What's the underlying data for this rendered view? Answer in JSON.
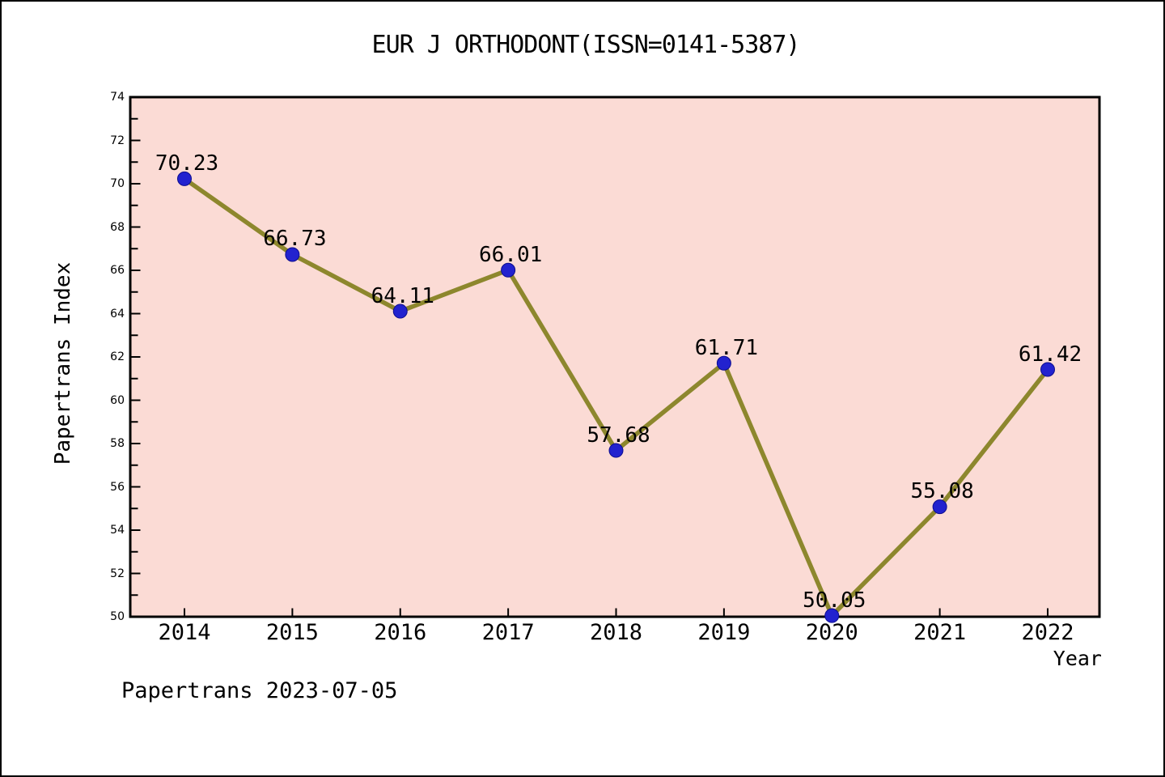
{
  "header": {
    "title": "EUR J ORTHODONT(ISSN=0141-5387)"
  },
  "footer": {
    "note": "Papertrans 2023-07-05"
  },
  "chart_data": {
    "type": "line",
    "title": "EUR J ORTHODONT(ISSN=0141-5387)",
    "xlabel": "Year",
    "ylabel": "Papertrans Index",
    "x": [
      2014,
      2015,
      2016,
      2017,
      2018,
      2019,
      2020,
      2021,
      2022
    ],
    "values": [
      70.23,
      66.73,
      64.11,
      66.01,
      57.68,
      61.71,
      50.05,
      55.08,
      61.42
    ],
    "point_labels": [
      "70.23",
      "66.73",
      "64.11",
      "66.01",
      "57.68",
      "61.71",
      "50.05",
      "55.08",
      "61.42"
    ],
    "ylim": [
      50,
      74
    ],
    "ytick_major_step": 2,
    "ytick_minor_step": 1,
    "grid": false,
    "legend": "none",
    "colors": {
      "line": "#8d872d",
      "marker_fill": "#2222cf",
      "marker_edge": "#0d0d8f",
      "plot_bg": "#fbdbd5",
      "page_bg": "#ffffff",
      "text": "#000000"
    }
  }
}
